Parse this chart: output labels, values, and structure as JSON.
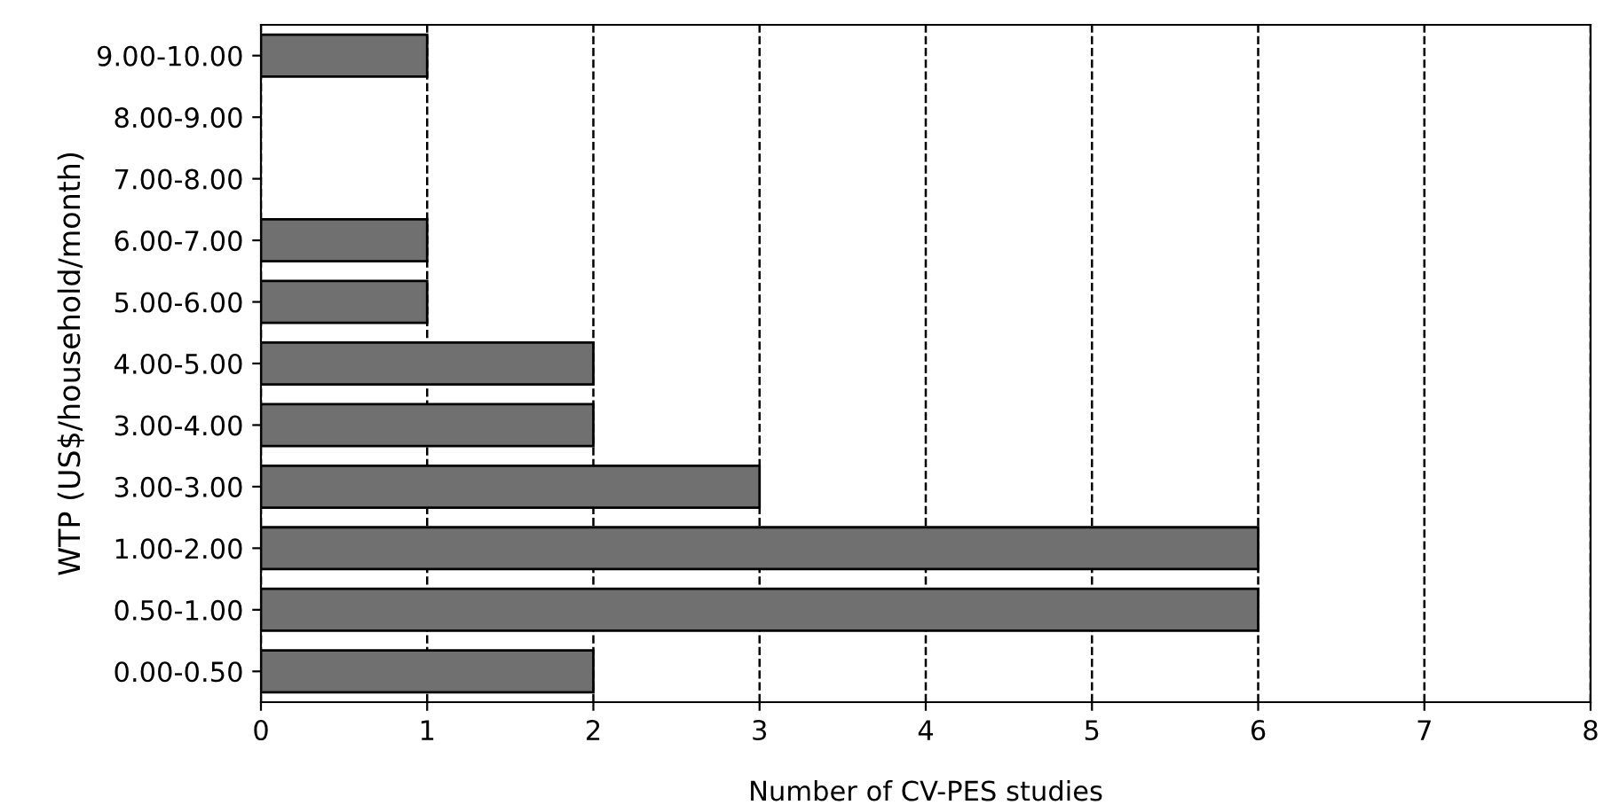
{
  "chart_data": {
    "type": "bar",
    "orientation": "horizontal",
    "categories": [
      "9.00-10.00",
      "8.00-9.00",
      "7.00-8.00",
      "6.00-7.00",
      "5.00-6.00",
      "4.00-5.00",
      "3.00-4.00",
      "3.00-3.00",
      "1.00-2.00",
      "0.50-1.00",
      "0.00-0.50"
    ],
    "values": [
      1,
      0,
      0,
      1,
      1,
      2,
      2,
      3,
      6,
      6,
      2
    ],
    "color": "#707070",
    "xlabel": "Number of CV-PES studies",
    "ylabel": "WTP (US$/household/month)",
    "xlim": [
      0,
      8
    ],
    "xticks": [
      0,
      1,
      2,
      3,
      4,
      5,
      6,
      7,
      8
    ],
    "grid": "x"
  }
}
